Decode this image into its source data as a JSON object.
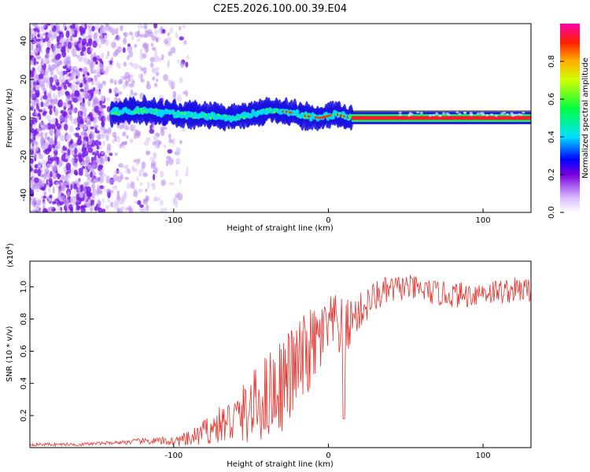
{
  "title": "C2E5.2026.100.00.39.E04",
  "chart_data": [
    {
      "type": "heatmap",
      "name": "spectrogram",
      "xlabel": "Height of straight line (km)",
      "ylabel": "Frequency (Hz)",
      "xlim": [
        -193,
        131
      ],
      "ylim": [
        -49,
        49
      ],
      "x_ticks": [
        -100,
        0,
        100
      ],
      "y_ticks": [
        40,
        20,
        0,
        -20,
        -40
      ],
      "colorbar": {
        "label": "Normalized spectral amplitude",
        "range": [
          0,
          1
        ],
        "ticks": [
          0.0,
          0.2,
          0.4,
          0.6,
          0.8
        ]
      },
      "ridge": {
        "x": [
          -140,
          -120,
          -100,
          -80,
          -60,
          -45,
          -35,
          -25,
          -15,
          -5,
          0,
          5,
          10,
          15,
          131
        ],
        "y": [
          3,
          4,
          2,
          1,
          0,
          3,
          4,
          3,
          1,
          0,
          1,
          2,
          1,
          0,
          0
        ]
      },
      "noise_region_x": [
        -193,
        -90
      ]
    },
    {
      "type": "line",
      "name": "snr",
      "xlabel": "Height of straight line (km)",
      "ylabel": "SNR (10 * v/v)",
      "scale_label": "(x10",
      "scale_exp": "4",
      "xlim": [
        -193,
        131
      ],
      "ylim": [
        0,
        1.16
      ],
      "x_ticks": [
        -100,
        0,
        100
      ],
      "y_ticks": [
        0.2,
        0.4,
        0.6,
        0.8,
        1.0
      ],
      "color": "#e8302a",
      "series": [
        {
          "name": "snr",
          "x": [
            -193,
            -160,
            -140,
            -120,
            -100,
            -90,
            -80,
            -70,
            -60,
            -50,
            -40,
            -30,
            -20,
            -10,
            0,
            5,
            10,
            15,
            20,
            30,
            40,
            50,
            60,
            70,
            80,
            90,
            100,
            110,
            120,
            131
          ],
          "y": [
            0.02,
            0.02,
            0.03,
            0.04,
            0.04,
            0.05,
            0.1,
            0.14,
            0.18,
            0.24,
            0.32,
            0.4,
            0.5,
            0.62,
            0.74,
            0.78,
            0.7,
            0.8,
            0.84,
            0.94,
            0.98,
            1.0,
            0.98,
            0.96,
            0.95,
            0.95,
            0.97,
            0.97,
            0.98,
            0.98
          ],
          "spread": [
            0.01,
            0.01,
            0.01,
            0.02,
            0.03,
            0.05,
            0.08,
            0.12,
            0.16,
            0.22,
            0.28,
            0.3,
            0.3,
            0.26,
            0.2,
            0.18,
            0.22,
            0.14,
            0.12,
            0.1,
            0.09,
            0.08,
            0.08,
            0.08,
            0.08,
            0.08,
            0.08,
            0.08,
            0.08,
            0.08
          ]
        }
      ]
    }
  ]
}
